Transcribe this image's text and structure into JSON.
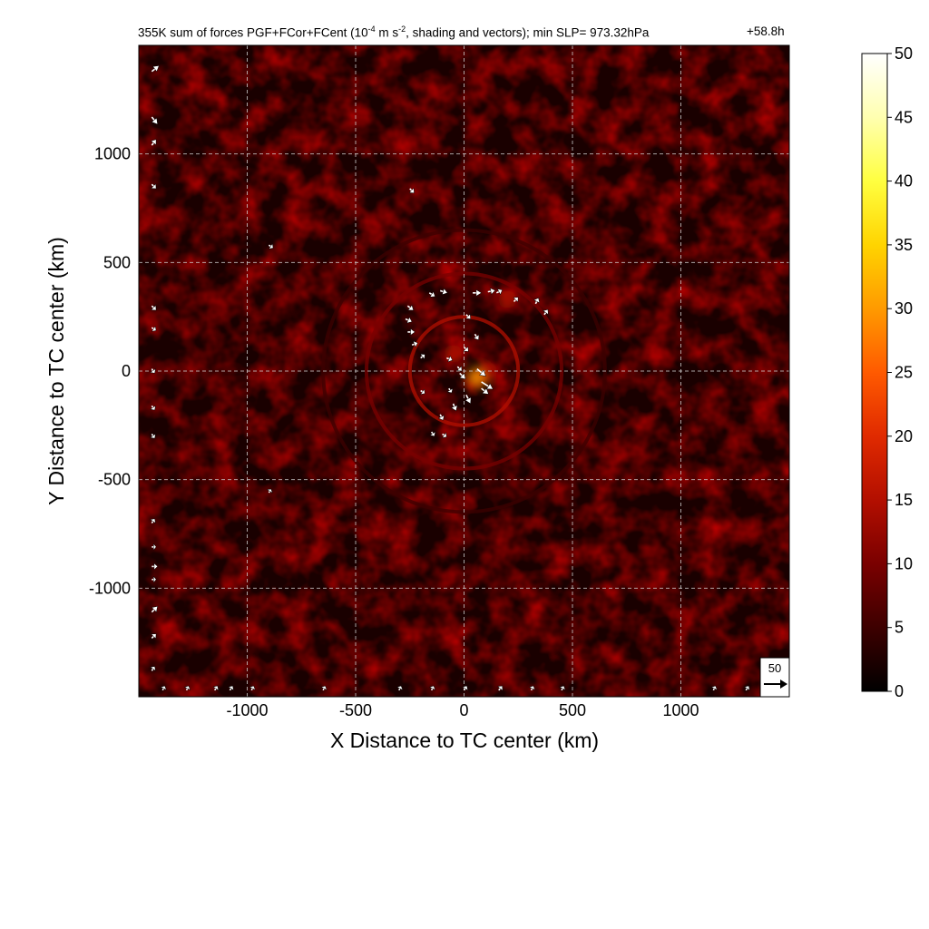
{
  "chart_data": {
    "type": "heatmap",
    "title_parts": {
      "prefix": "355K sum of forces PGF+FCor+FCent (10",
      "exp1": "-4",
      "mid": " m s",
      "exp2": "-2",
      "suffix": ", shading and vectors); min SLP= 973.32hPa"
    },
    "forecast_hour": "+58.8h",
    "xlabel": "X Distance to TC center (km)",
    "ylabel": "Y Distance to TC center (km)",
    "xlim": [
      -1500,
      1500
    ],
    "ylim": [
      -1500,
      1500
    ],
    "x_ticks": [
      -1000,
      -500,
      0,
      500,
      1000
    ],
    "y_ticks": [
      -1000,
      -500,
      0,
      500,
      1000
    ],
    "x_tick_labels": [
      "-1000",
      "-500",
      "0",
      "500",
      "1000"
    ],
    "y_tick_labels": [
      "-1000",
      "-500",
      "0",
      "500",
      "1000"
    ],
    "grid": true,
    "colorbar": {
      "min": 0,
      "max": 50,
      "ticks": [
        0,
        5,
        10,
        15,
        20,
        25,
        30,
        35,
        40,
        45,
        50
      ],
      "tick_labels": [
        "0",
        "5",
        "10",
        "15",
        "20",
        "25",
        "30",
        "35",
        "40",
        "45",
        "50"
      ],
      "colors": [
        "#000000",
        "#3d0000",
        "#7a0000",
        "#b30f00",
        "#e02a00",
        "#ff5a00",
        "#ff9a00",
        "#ffd400",
        "#ffff40",
        "#ffffb0",
        "#ffffff"
      ]
    },
    "reference_vector": {
      "label": "50",
      "value": 50
    },
    "rings": [
      {
        "radius_km": 250,
        "value": 13
      },
      {
        "radius_km": 450,
        "value": 9
      },
      {
        "radius_km": 650,
        "value": 6
      }
    ],
    "hotspots": [
      {
        "x": 60,
        "y": -30,
        "value": 28
      },
      {
        "x": -50,
        "y": 80,
        "value": 14
      },
      {
        "x": 110,
        "y": 0,
        "value": 16
      },
      {
        "x": 200,
        "y": 330,
        "value": 15
      }
    ],
    "vectors": [
      {
        "x": -160,
        "y": 360,
        "u": 8,
        "v": -5
      },
      {
        "x": -110,
        "y": 370,
        "u": 10,
        "v": -3
      },
      {
        "x": 40,
        "y": 360,
        "u": 12,
        "v": 0
      },
      {
        "x": 110,
        "y": 365,
        "u": 10,
        "v": 2
      },
      {
        "x": 150,
        "y": 360,
        "u": 8,
        "v": 4
      },
      {
        "x": 230,
        "y": 320,
        "u": 6,
        "v": 6
      },
      {
        "x": 330,
        "y": 310,
        "u": 4,
        "v": 8
      },
      {
        "x": 370,
        "y": 260,
        "u": 5,
        "v": 7
      },
      {
        "x": -260,
        "y": 300,
        "u": 8,
        "v": -6
      },
      {
        "x": -270,
        "y": 240,
        "u": 9,
        "v": -4
      },
      {
        "x": -260,
        "y": 180,
        "u": 10,
        "v": 0
      },
      {
        "x": -240,
        "y": 120,
        "u": 8,
        "v": 3
      },
      {
        "x": -200,
        "y": 60,
        "u": 6,
        "v": 5
      },
      {
        "x": 10,
        "y": 260,
        "u": 6,
        "v": -6
      },
      {
        "x": 50,
        "y": 170,
        "u": 5,
        "v": -8
      },
      {
        "x": 0,
        "y": 110,
        "u": 6,
        "v": -6
      },
      {
        "x": -80,
        "y": 60,
        "u": 8,
        "v": -3
      },
      {
        "x": -30,
        "y": 20,
        "u": 6,
        "v": -6
      },
      {
        "x": -20,
        "y": -10,
        "u": 8,
        "v": -8
      },
      {
        "x": 60,
        "y": 10,
        "u": 12,
        "v": -10
      },
      {
        "x": 80,
        "y": -50,
        "u": 16,
        "v": -10
      },
      {
        "x": 10,
        "y": -110,
        "u": 6,
        "v": -12
      },
      {
        "x": -50,
        "y": -150,
        "u": 4,
        "v": -10
      },
      {
        "x": -110,
        "y": -200,
        "u": 4,
        "v": -8
      },
      {
        "x": -150,
        "y": -280,
        "u": 4,
        "v": -6
      },
      {
        "x": -100,
        "y": -290,
        "u": 6,
        "v": -4
      },
      {
        "x": -200,
        "y": -90,
        "u": 6,
        "v": -4
      },
      {
        "x": -70,
        "y": -80,
        "u": 4,
        "v": -6
      },
      {
        "x": 80,
        "y": -80,
        "u": 10,
        "v": -8
      },
      {
        "x": -900,
        "y": 580,
        "u": 6,
        "v": -4
      },
      {
        "x": -250,
        "y": 840,
        "u": 6,
        "v": -6
      },
      {
        "x": -900,
        "y": -560,
        "u": 3,
        "v": 5
      },
      {
        "x": -1440,
        "y": 1380,
        "u": 10,
        "v": 8
      },
      {
        "x": -1440,
        "y": 1170,
        "u": 8,
        "v": -10
      },
      {
        "x": -1440,
        "y": 1040,
        "u": 6,
        "v": 8
      },
      {
        "x": -1440,
        "y": 860,
        "u": 6,
        "v": -6
      },
      {
        "x": -1440,
        "y": 300,
        "u": 6,
        "v": -6
      },
      {
        "x": -1440,
        "y": 200,
        "u": 6,
        "v": -4
      },
      {
        "x": -1440,
        "y": 10,
        "u": 4,
        "v": -6
      },
      {
        "x": -1440,
        "y": -160,
        "u": 4,
        "v": -6
      },
      {
        "x": -1440,
        "y": -290,
        "u": 4,
        "v": -6
      },
      {
        "x": -1440,
        "y": -700,
        "u": 4,
        "v": 6
      },
      {
        "x": -1440,
        "y": -810,
        "u": 6,
        "v": 0
      },
      {
        "x": -1440,
        "y": -900,
        "u": 8,
        "v": 0
      },
      {
        "x": -1440,
        "y": -960,
        "u": 6,
        "v": 0
      },
      {
        "x": -1440,
        "y": -1110,
        "u": 8,
        "v": 8
      },
      {
        "x": -1440,
        "y": -1230,
        "u": 6,
        "v": 6
      },
      {
        "x": -1440,
        "y": -1380,
        "u": 4,
        "v": 6
      },
      {
        "x": -1390,
        "y": -1470,
        "u": 3,
        "v": 6
      },
      {
        "x": -1280,
        "y": -1470,
        "u": 3,
        "v": 6
      },
      {
        "x": -1150,
        "y": -1470,
        "u": 4,
        "v": 6
      },
      {
        "x": -1080,
        "y": -1470,
        "u": 4,
        "v": 6
      },
      {
        "x": -980,
        "y": -1470,
        "u": 3,
        "v": 6
      },
      {
        "x": -650,
        "y": -1470,
        "u": 3,
        "v": 6
      },
      {
        "x": -300,
        "y": -1470,
        "u": 3,
        "v": 6
      },
      {
        "x": -150,
        "y": -1470,
        "u": 3,
        "v": 6
      },
      {
        "x": 0,
        "y": -1470,
        "u": 4,
        "v": 6
      },
      {
        "x": 160,
        "y": -1470,
        "u": 5,
        "v": 6
      },
      {
        "x": 310,
        "y": -1470,
        "u": 3,
        "v": 6
      },
      {
        "x": 450,
        "y": -1470,
        "u": 3,
        "v": 6
      },
      {
        "x": 1150,
        "y": -1470,
        "u": 3,
        "v": 6
      },
      {
        "x": 1300,
        "y": -1470,
        "u": 4,
        "v": 6
      }
    ]
  }
}
